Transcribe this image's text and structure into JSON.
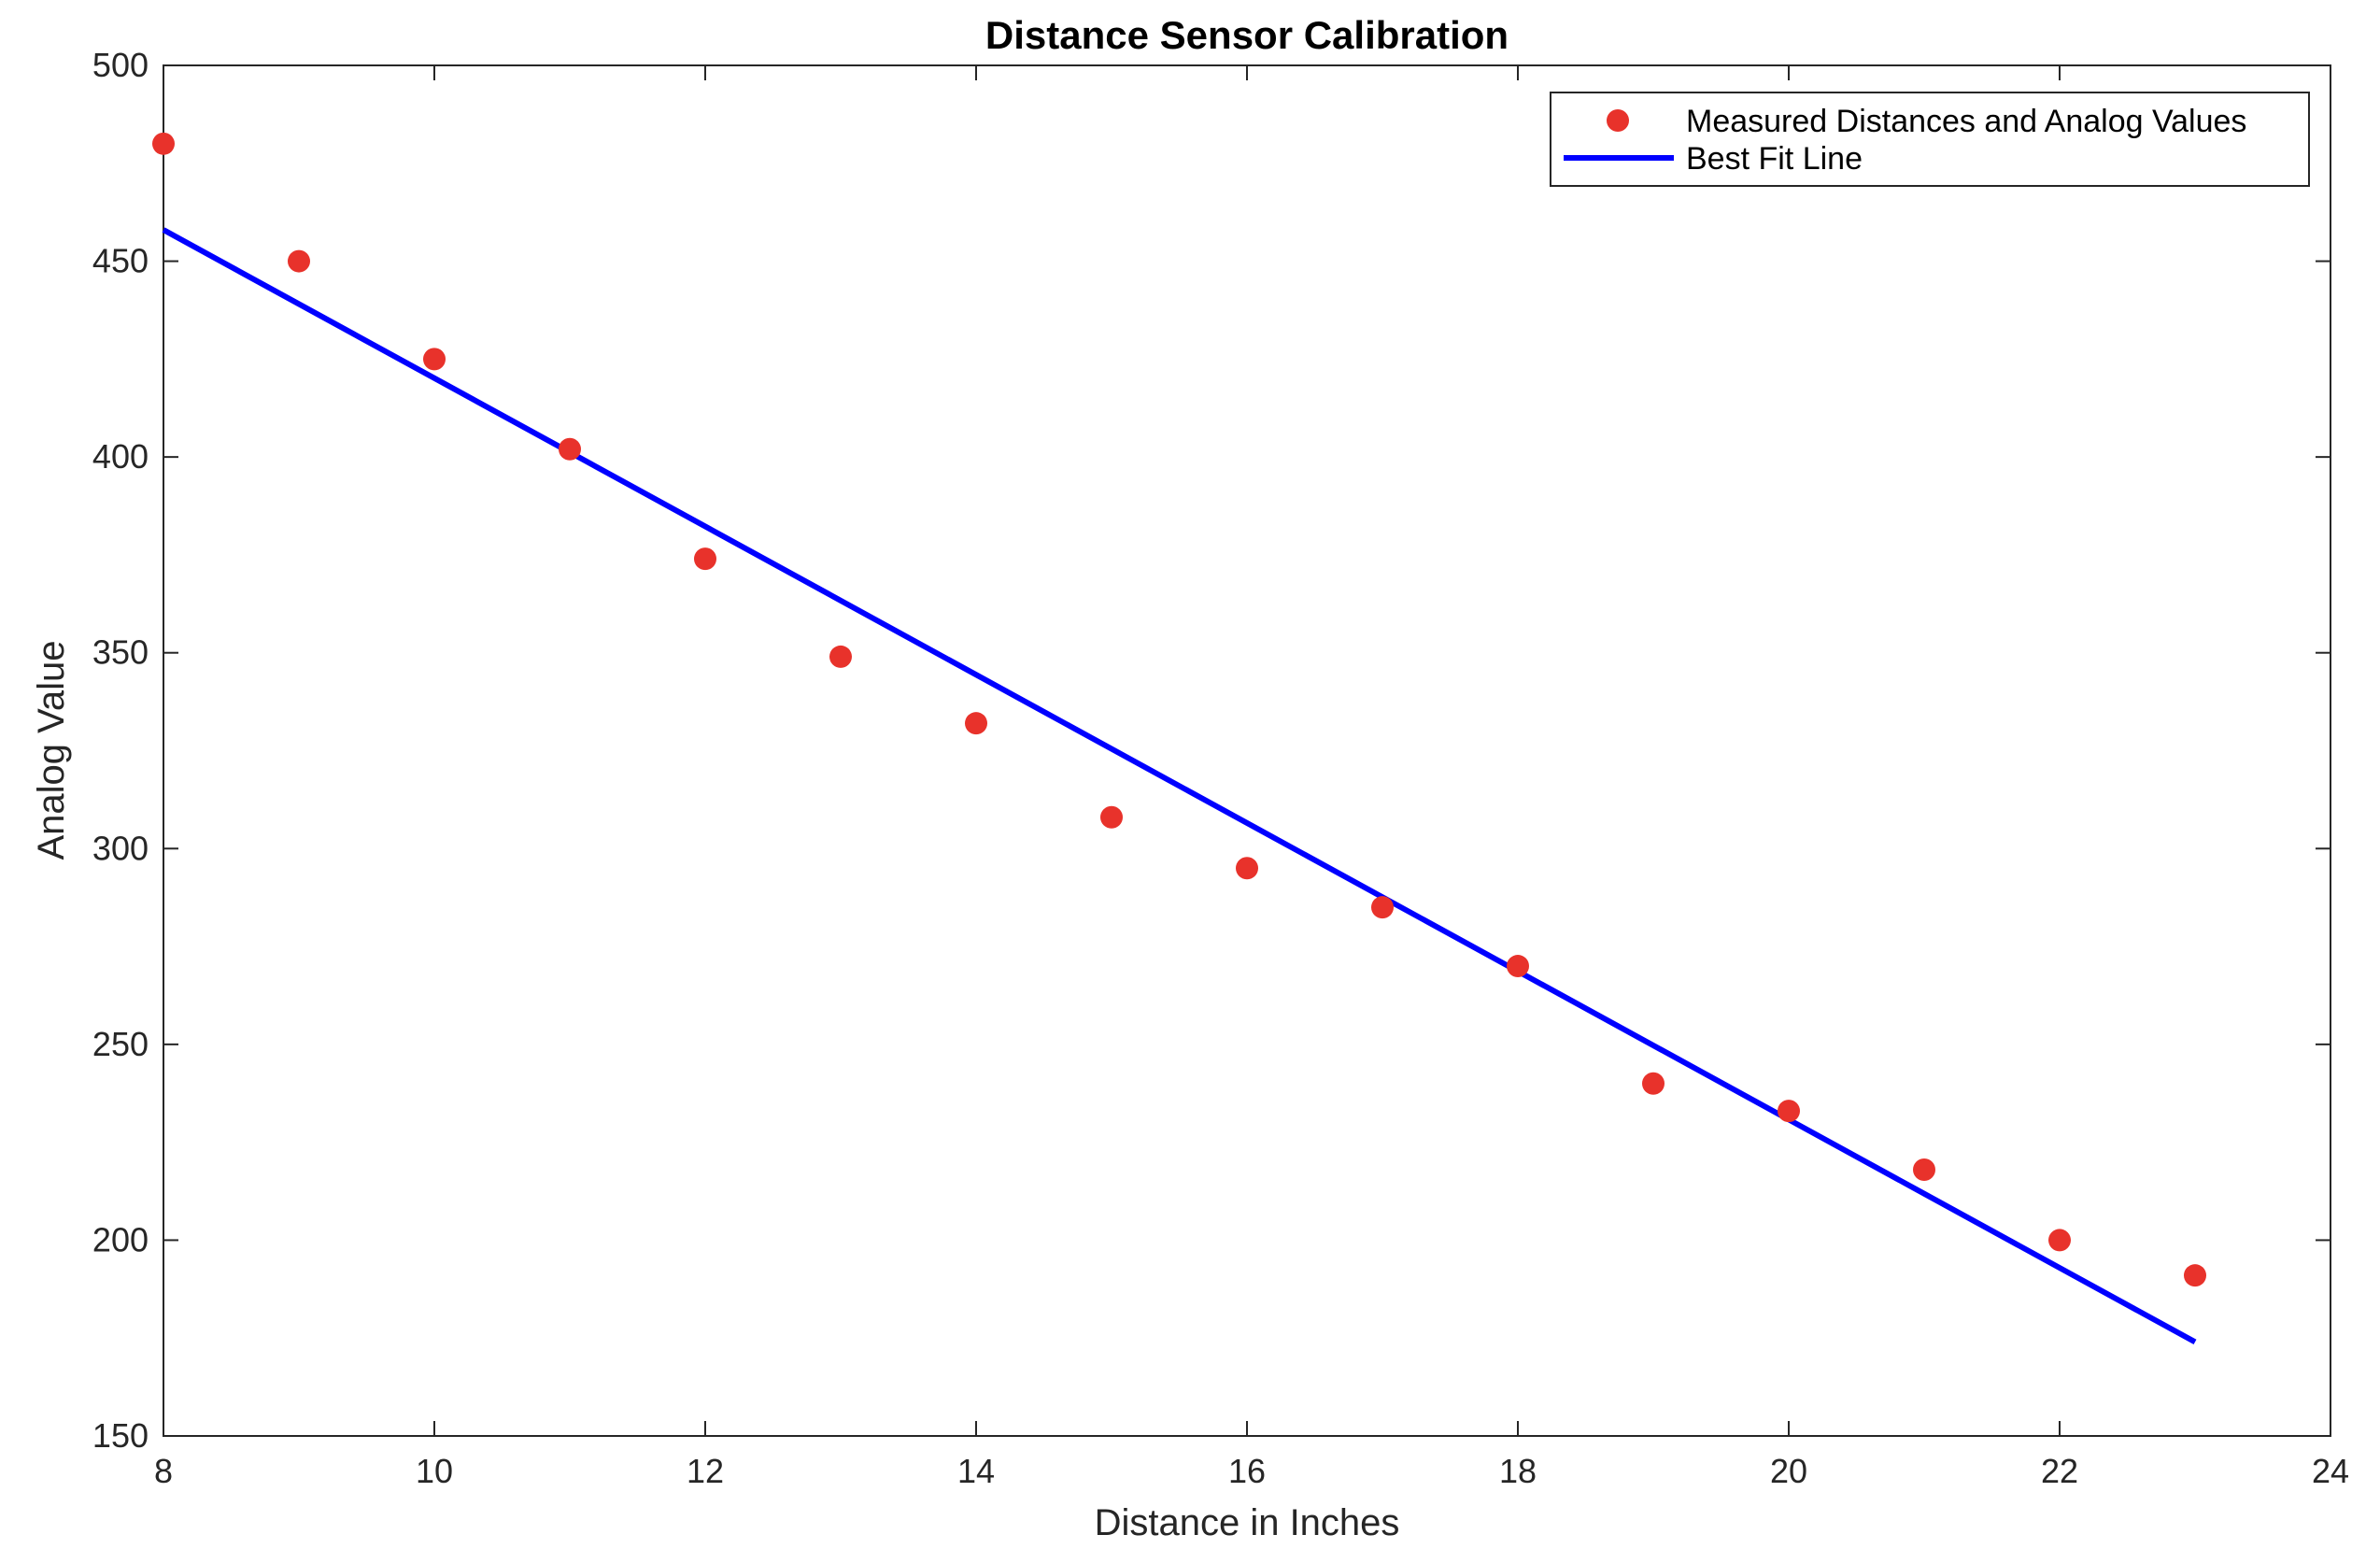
{
  "chart_data": {
    "type": "scatter",
    "title": "Distance Sensor Calibration",
    "xlabel": "Distance in Inches",
    "ylabel": "Analog Value",
    "xlim": [
      8,
      24
    ],
    "ylim": [
      150,
      500
    ],
    "xticks": [
      8,
      10,
      12,
      14,
      16,
      18,
      20,
      22,
      24
    ],
    "yticks": [
      150,
      200,
      250,
      300,
      350,
      400,
      450,
      500
    ],
    "xtick_labels": [
      "8",
      "10",
      "12",
      "14",
      "16",
      "18",
      "20",
      "22",
      "24"
    ],
    "ytick_labels": [
      "150",
      "200",
      "250",
      "300",
      "350",
      "400",
      "450",
      "500"
    ],
    "grid": false,
    "legend_position": "top-right",
    "series": [
      {
        "name": "Measured Distances and Analog Values",
        "kind": "scatter",
        "color": "#e8322b",
        "x": [
          8,
          9,
          10,
          11,
          12,
          13,
          14,
          15,
          16,
          17,
          18,
          19,
          20,
          21,
          22,
          23
        ],
        "y": [
          480,
          450,
          425,
          402,
          374,
          349,
          332,
          308,
          295,
          285,
          270,
          240,
          233,
          218,
          200,
          191
        ]
      },
      {
        "name": "Best Fit Line",
        "kind": "line",
        "color": "#0000ff",
        "x": [
          8,
          23
        ],
        "y": [
          458,
          174
        ]
      }
    ]
  }
}
